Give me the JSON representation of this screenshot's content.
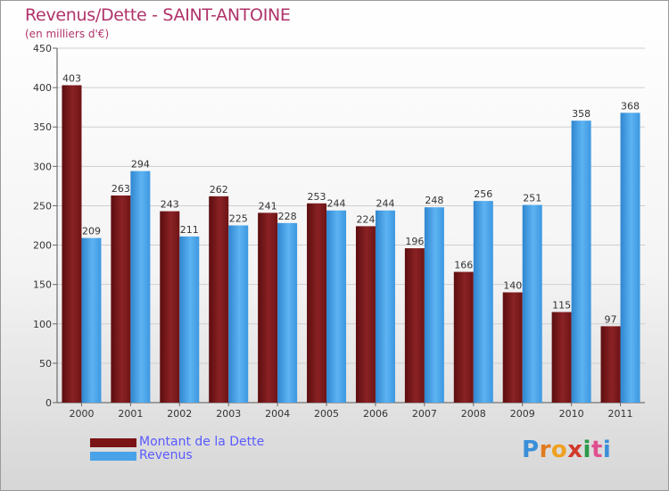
{
  "header": {
    "title": "Revenus/Dette - SAINT-ANTOINE",
    "subtitle": "(en milliers d'€)"
  },
  "legend": {
    "items": [
      {
        "label": "Montant de la Dette",
        "color": "#7a1416"
      },
      {
        "label": "Revenus",
        "color": "#4aa3e8"
      }
    ]
  },
  "logo": {
    "text": "Proxiti"
  },
  "chart_data": {
    "type": "bar",
    "categories": [
      "2000",
      "2001",
      "2002",
      "2003",
      "2004",
      "2005",
      "2006",
      "2007",
      "2008",
      "2009",
      "2010",
      "2011"
    ],
    "series": [
      {
        "name": "Montant de la Dette",
        "color": "#7a1416",
        "values": [
          403,
          263,
          243,
          262,
          241,
          253,
          224,
          196,
          166,
          140,
          115,
          97
        ]
      },
      {
        "name": "Revenus",
        "color": "#4aa3e8",
        "values": [
          209,
          294,
          211,
          225,
          228,
          244,
          244,
          248,
          256,
          251,
          358,
          368
        ]
      }
    ],
    "yticks": [
      0,
      50,
      100,
      150,
      200,
      250,
      300,
      350,
      400,
      450
    ],
    "ylim": [
      0,
      450
    ],
    "grid": true,
    "title": "Revenus/Dette - SAINT-ANTOINE",
    "ylabel": "(en milliers d'€)",
    "xlabel": ""
  }
}
